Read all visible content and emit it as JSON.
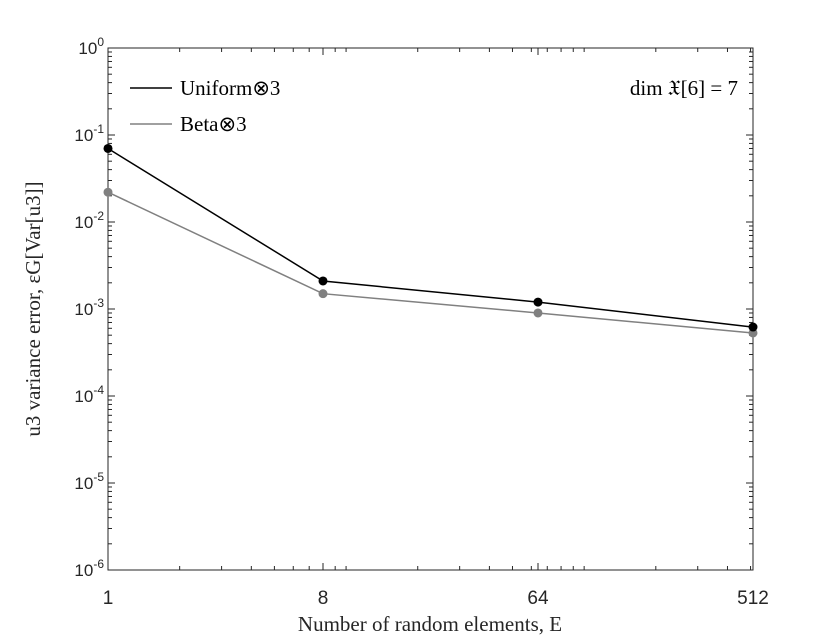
{
  "chart_data": {
    "type": "line",
    "x": [
      1,
      8,
      64,
      512
    ],
    "x_tick_labels": [
      "1",
      "8",
      "64",
      "512"
    ],
    "xlim": [
      1,
      512
    ],
    "x_scale": "log",
    "xlabel": "Number of random elements, E",
    "y_scale": "log",
    "ylim": [
      1e-06,
      1
    ],
    "y_tick_exponents": [
      -6,
      -5,
      -4,
      -3,
      -2,
      -1,
      0
    ],
    "ylabel": "u3 variance error, εG[Var[u3]]",
    "grid": false,
    "legend_position": "top-left",
    "annotation": "dim 𝔛[6] = 7",
    "series": [
      {
        "name": "Uniform⊗3",
        "color": "#000000",
        "values": [
          0.07,
          0.0021,
          0.0012,
          0.00062
        ]
      },
      {
        "name": "Beta⊗3",
        "color": "#808080",
        "values": [
          0.022,
          0.0015,
          0.0009,
          0.00053
        ]
      }
    ]
  }
}
